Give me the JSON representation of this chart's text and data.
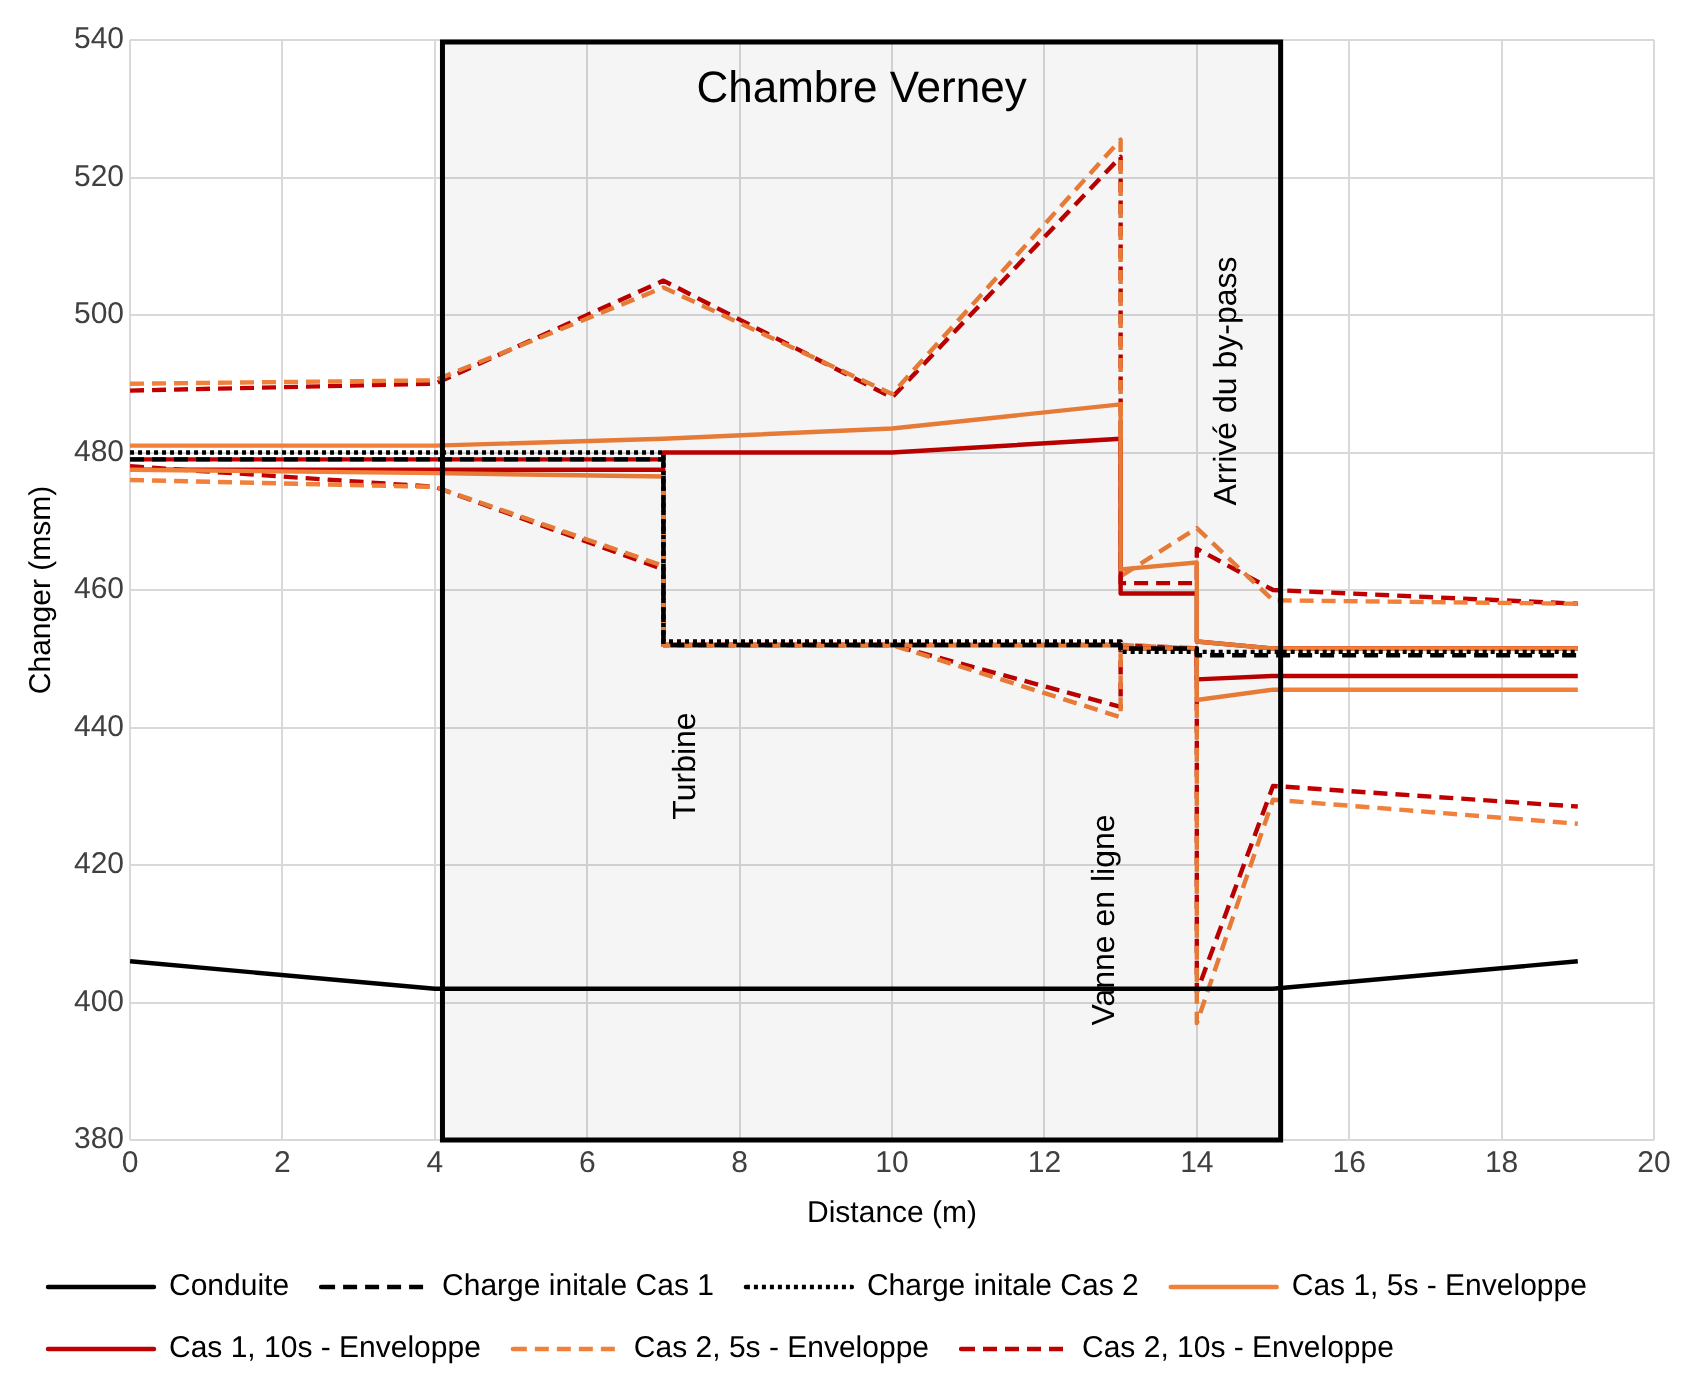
{
  "chart_data": {
    "type": "line",
    "xlabel": "Distance (m)",
    "ylabel": "Changer (msm)",
    "xlim": [
      0,
      20
    ],
    "xticks": [
      0,
      2,
      4,
      6,
      8,
      10,
      12,
      14,
      16,
      18,
      20
    ],
    "ylim": [
      380,
      540
    ],
    "yticks": [
      380,
      400,
      420,
      440,
      460,
      480,
      500,
      520,
      540
    ],
    "grid": true,
    "legend": "bottom",
    "marker": "none",
    "bands": [
      {
        "axis": "x",
        "from": 4.1,
        "to": 15.1,
        "label": "Chambre Verney",
        "color": "#000000"
      }
    ],
    "annotations": [
      "Turbine",
      "Vanne en ligne",
      "Arrivé du by-pass"
    ],
    "series": [
      {
        "name": "Conduite",
        "color": "#000000",
        "line_style": "solid",
        "x": [
          0,
          4,
          15,
          19
        ],
        "values": [
          406,
          402,
          402,
          406
        ]
      },
      {
        "name": "Charge initale Cas 1",
        "color": "#000000",
        "line_style": "dashed",
        "x": [
          0,
          7,
          7,
          13,
          13,
          14,
          14,
          19
        ],
        "values": [
          479,
          479,
          452,
          452,
          451.5,
          451.5,
          450.5,
          450.5
        ]
      },
      {
        "name": "Charge initale Cas 2",
        "color": "#000000",
        "line_style": "dotted",
        "x": [
          0,
          7,
          7,
          13,
          13,
          19
        ],
        "values": [
          480,
          480,
          452.5,
          452.5,
          451,
          451
        ]
      },
      {
        "name": "Cas 1, 5s - Enveloppe",
        "color": "#f0803a",
        "line_style": "solid",
        "x": [
          0,
          4,
          7,
          10,
          13,
          13,
          14,
          14,
          15,
          19,
          null,
          0,
          4,
          7,
          7,
          10,
          13,
          13,
          14,
          14,
          15,
          19
        ],
        "values": [
          481,
          481,
          482,
          483.5,
          487,
          463,
          464,
          452.5,
          451.5,
          451.5,
          null,
          477.5,
          477,
          476.5,
          452,
          452,
          452,
          451.5,
          451.5,
          444,
          445.5,
          445.5
        ]
      },
      {
        "name": "Cas 1, 10s - Enveloppe",
        "color": "#c00000",
        "line_style": "solid",
        "x": [
          0,
          4,
          7,
          7,
          10,
          13,
          13,
          14,
          14,
          15,
          19,
          null,
          0,
          4,
          7,
          7,
          10,
          13,
          13,
          14,
          14,
          15,
          19
        ],
        "values": [
          479,
          479,
          479,
          480,
          480,
          482,
          459.5,
          459.5,
          452.5,
          451.5,
          451.5,
          null,
          477.5,
          477.5,
          477.5,
          452,
          452,
          452,
          451.5,
          451.5,
          447,
          447.5,
          447.5
        ]
      },
      {
        "name": "Cas 2, 5s - Enveloppe",
        "color": "#f0803a",
        "line_style": "dashed",
        "x": [
          0,
          4,
          7,
          10,
          13,
          13,
          14,
          15,
          19,
          null,
          0,
          4,
          7,
          7,
          10,
          13,
          13,
          14,
          14,
          15,
          19
        ],
        "values": [
          490,
          490.5,
          504,
          488.5,
          525.5,
          462,
          469,
          458.5,
          458,
          null,
          476,
          475,
          463.5,
          452,
          452,
          441.5,
          452,
          451.5,
          397,
          429.5,
          426
        ]
      },
      {
        "name": "Cas 2, 10s - Enveloppe",
        "color": "#c00000",
        "line_style": "dashed",
        "x": [
          0,
          4,
          7,
          10,
          13,
          13,
          14,
          14,
          15,
          19,
          null,
          0,
          4,
          7,
          7,
          10,
          13,
          13,
          14,
          14,
          15,
          19
        ],
        "values": [
          489,
          490,
          505,
          488,
          523,
          461,
          461,
          466,
          460,
          458,
          null,
          478,
          475,
          463,
          452,
          452,
          443,
          452,
          451.5,
          401.5,
          431.5,
          428.5
        ]
      }
    ]
  }
}
